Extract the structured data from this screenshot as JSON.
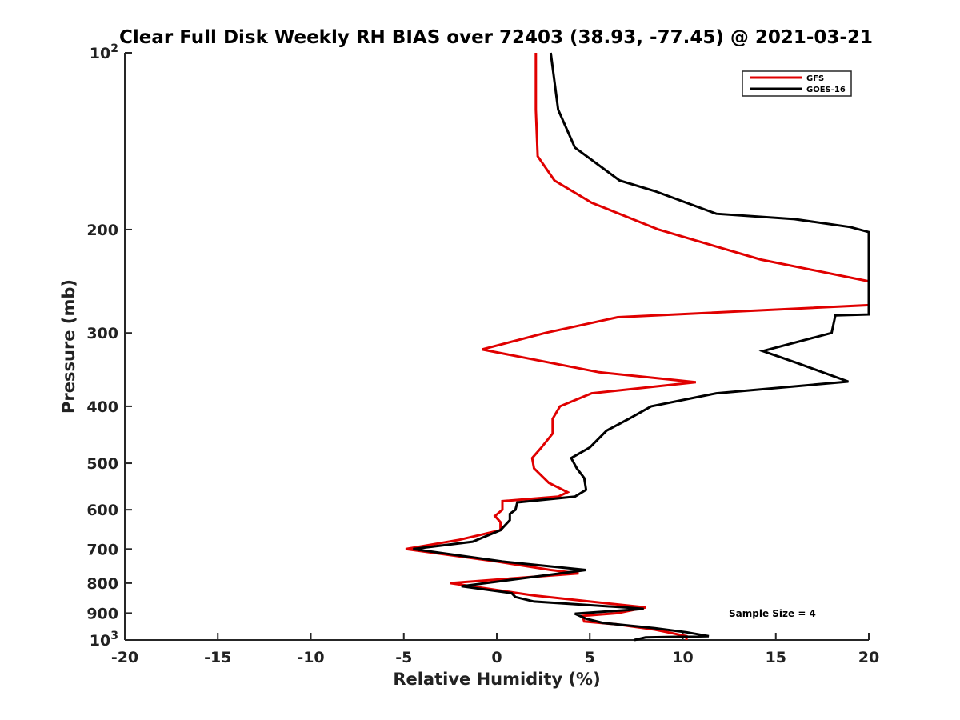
{
  "chart_data": {
    "type": "line",
    "title": "Clear Full Disk Weekly RH BIAS over 72403 (38.93, -77.45) @ 2021-03-21",
    "xlabel": "Relative Humidity (%)",
    "ylabel": "Pressure (mb)",
    "xlim": [
      -20,
      20
    ],
    "ylim": [
      100,
      1000
    ],
    "y_scale": "log",
    "y_reversed": true,
    "x_ticks": [
      "-20",
      "-15",
      "-10",
      "-5",
      "0",
      "5",
      "10",
      "15",
      "20"
    ],
    "y_ticks": [
      {
        "value": 100,
        "label": "10",
        "sup": "2"
      },
      {
        "value": 200,
        "label": "200",
        "sup": ""
      },
      {
        "value": 300,
        "label": "300",
        "sup": ""
      },
      {
        "value": 400,
        "label": "400",
        "sup": ""
      },
      {
        "value": 500,
        "label": "500",
        "sup": ""
      },
      {
        "value": 600,
        "label": "600",
        "sup": ""
      },
      {
        "value": 700,
        "label": "700",
        "sup": ""
      },
      {
        "value": 800,
        "label": "800",
        "sup": ""
      },
      {
        "value": 900,
        "label": "900",
        "sup": ""
      },
      {
        "value": 1000,
        "label": "10",
        "sup": "3"
      }
    ],
    "grid": false,
    "legend_position": "top-right",
    "annotation": "Sample Size = 4",
    "series": [
      {
        "name": "GFS",
        "color": "#e00000",
        "points": [
          [
            2.1,
            100
          ],
          [
            2.1,
            125
          ],
          [
            2.2,
            150
          ],
          [
            3.1,
            165
          ],
          [
            5.1,
            180
          ],
          [
            8.7,
            200
          ],
          [
            14.2,
            225
          ],
          [
            20.0,
            245
          ],
          [
            20.0,
            269
          ],
          [
            6.5,
            282
          ],
          [
            2.6,
            300
          ],
          [
            -0.8,
            320
          ],
          [
            5.5,
            350
          ],
          [
            10.7,
            364
          ],
          [
            5.1,
            380
          ],
          [
            3.4,
            400
          ],
          [
            3.0,
            420
          ],
          [
            3.0,
            445
          ],
          [
            2.4,
            470
          ],
          [
            1.9,
            490
          ],
          [
            2.0,
            510
          ],
          [
            2.8,
            540
          ],
          [
            3.8,
            560
          ],
          [
            3.3,
            570
          ],
          [
            0.3,
            580
          ],
          [
            0.3,
            600
          ],
          [
            -0.1,
            615
          ],
          [
            0.2,
            630
          ],
          [
            0.2,
            650
          ],
          [
            -2.0,
            675
          ],
          [
            -4.9,
            700
          ],
          [
            0.0,
            735
          ],
          [
            2.9,
            760
          ],
          [
            4.4,
            770
          ],
          [
            -2.5,
            800
          ],
          [
            0.9,
            830
          ],
          [
            2.0,
            840
          ],
          [
            8.0,
            880
          ],
          [
            6.5,
            900
          ],
          [
            4.6,
            910
          ],
          [
            4.7,
            930
          ],
          [
            6.4,
            940
          ],
          [
            8.5,
            960
          ],
          [
            10.2,
            985
          ],
          [
            10.2,
            1000
          ]
        ]
      },
      {
        "name": "GOES-16",
        "color": "#000000",
        "points": [
          [
            2.9,
            100
          ],
          [
            3.3,
            125
          ],
          [
            4.2,
            145
          ],
          [
            6.6,
            165
          ],
          [
            8.5,
            172
          ],
          [
            11.8,
            188
          ],
          [
            16.0,
            192
          ],
          [
            19.0,
            198
          ],
          [
            20.0,
            202
          ],
          [
            20.0,
            279
          ],
          [
            18.2,
            280
          ],
          [
            18.0,
            300
          ],
          [
            14.3,
            322
          ],
          [
            16.2,
            338
          ],
          [
            18.9,
            363
          ],
          [
            11.8,
            380
          ],
          [
            8.3,
            400
          ],
          [
            7.1,
            420
          ],
          [
            5.9,
            440
          ],
          [
            5.0,
            470
          ],
          [
            4.0,
            490
          ],
          [
            4.3,
            510
          ],
          [
            4.7,
            530
          ],
          [
            4.8,
            555
          ],
          [
            4.2,
            570
          ],
          [
            1.1,
            583
          ],
          [
            1.0,
            600
          ],
          [
            0.7,
            610
          ],
          [
            0.7,
            625
          ],
          [
            0.2,
            650
          ],
          [
            -1.3,
            680
          ],
          [
            -4.5,
            700
          ],
          [
            0.3,
            735
          ],
          [
            4.8,
            760
          ],
          [
            -1.9,
            810
          ],
          [
            0.8,
            832
          ],
          [
            1.0,
            845
          ],
          [
            2.0,
            860
          ],
          [
            6.9,
            880
          ],
          [
            7.9,
            885
          ],
          [
            4.2,
            902
          ],
          [
            4.8,
            920
          ],
          [
            5.7,
            935
          ],
          [
            8.5,
            955
          ],
          [
            10.2,
            970
          ],
          [
            11.4,
            985
          ],
          [
            8.0,
            990
          ],
          [
            7.4,
            1000
          ]
        ]
      }
    ]
  }
}
